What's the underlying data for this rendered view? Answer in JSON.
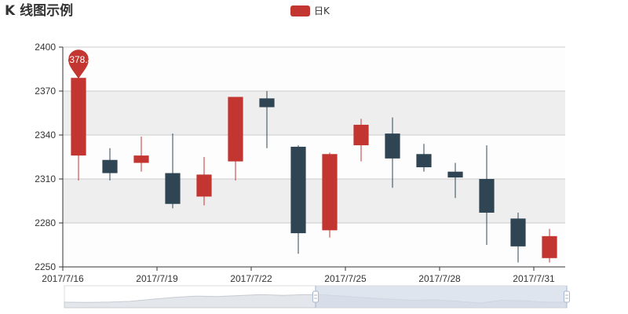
{
  "colors": {
    "rise": "#c23531",
    "fall": "#2f4554",
    "band": "#eeeeee",
    "grid": "#cccccc",
    "axis": "#333333",
    "zoom_window": "#d1dae8",
    "zoom_handle": "#a7b7cc"
  },
  "chart_data": {
    "type": "candlestick",
    "title": "K 线图示例",
    "legend": [
      "日K"
    ],
    "legend_position": "top-center",
    "ylim": [
      2250,
      2400
    ],
    "yticks": [
      2250,
      2280,
      2310,
      2340,
      2370,
      2400
    ],
    "xtick_labels": [
      "2017/7/16",
      "2017/7/19",
      "2017/7/22",
      "2017/7/25",
      "2017/7/28",
      "2017/7/31"
    ],
    "split_area": true,
    "datazoom": {
      "start_fraction": 0.5,
      "end_fraction": 1.0
    },
    "max_marker": {
      "value": "2378.8",
      "category_index": 0
    },
    "candles": [
      {
        "open": 2326,
        "close": 2379,
        "low": 2309,
        "high": 2379
      },
      {
        "open": 2323,
        "close": 2314,
        "low": 2309,
        "high": 2331
      },
      {
        "open": 2321,
        "close": 2326,
        "low": 2315,
        "high": 2339
      },
      {
        "open": 2314,
        "close": 2293,
        "low": 2290,
        "high": 2341
      },
      {
        "open": 2298,
        "close": 2313,
        "low": 2292,
        "high": 2325
      },
      {
        "open": 2322,
        "close": 2366,
        "low": 2309,
        "high": 2366
      },
      {
        "open": 2365,
        "close": 2359,
        "low": 2331,
        "high": 2370
      },
      {
        "open": 2332,
        "close": 2273,
        "low": 2259,
        "high": 2333
      },
      {
        "open": 2275,
        "close": 2327,
        "low": 2270,
        "high": 2328
      },
      {
        "open": 2333,
        "close": 2347,
        "low": 2322,
        "high": 2351
      },
      {
        "open": 2341,
        "close": 2324,
        "low": 2304,
        "high": 2352
      },
      {
        "open": 2327,
        "close": 2318,
        "low": 2315,
        "high": 2334
      },
      {
        "open": 2315,
        "close": 2311,
        "low": 2297,
        "high": 2321
      },
      {
        "open": 2310,
        "close": 2287,
        "low": 2265,
        "high": 2333
      },
      {
        "open": 2283,
        "close": 2264,
        "low": 2253,
        "high": 2287
      },
      {
        "open": 2256,
        "close": 2271,
        "low": 2253,
        "high": 2276
      }
    ],
    "overview_series": [
      0.3,
      0.28,
      0.3,
      0.34,
      0.45,
      0.55,
      0.62,
      0.6,
      0.65,
      0.7,
      0.66,
      0.7,
      0.68,
      0.6,
      0.52,
      0.45,
      0.4,
      0.42,
      0.35,
      0.25,
      0.4,
      0.38,
      0.3,
      0.3
    ]
  }
}
